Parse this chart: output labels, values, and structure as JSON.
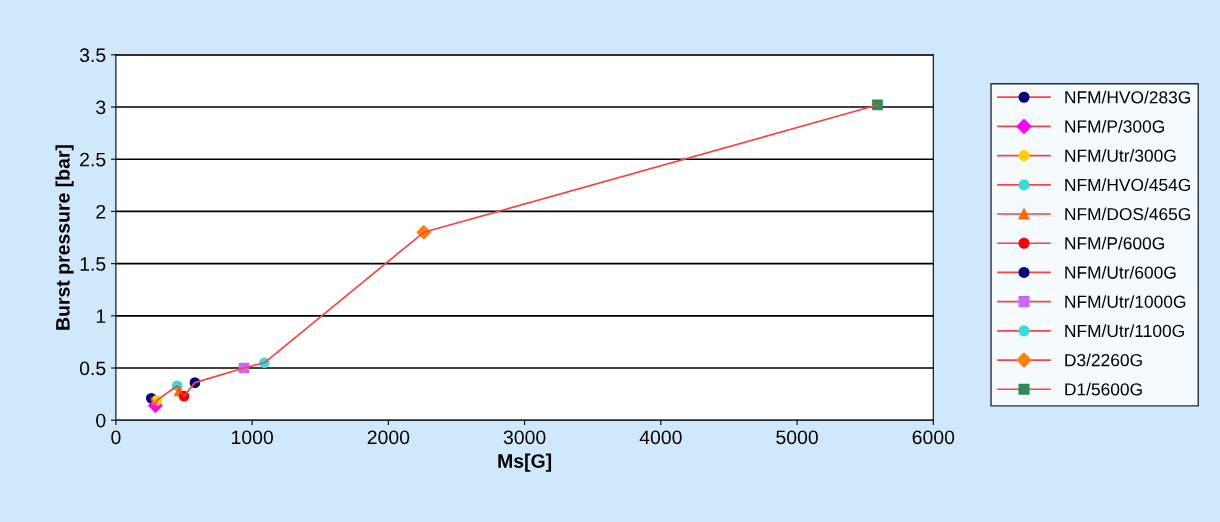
{
  "chart_data": {
    "type": "scatter",
    "xlabel": "Ms[G]",
    "ylabel": "Burst pressure [bar]",
    "xlim": [
      0,
      6000
    ],
    "xticks": [
      0,
      1000,
      2000,
      3000,
      4000,
      5000,
      6000
    ],
    "ylim": [
      0,
      3.5
    ],
    "yticks": [
      0,
      0.5,
      1,
      1.5,
      2,
      2.5,
      3,
      3.5
    ],
    "grid": "y",
    "legend": "right",
    "series": [
      {
        "type": "line",
        "color": "#ff4040",
        "marker": "none",
        "x": [
          260,
          290,
          300,
          450,
          465,
          500,
          580,
          940,
          1090,
          2260,
          5590
        ],
        "values": [
          0.21,
          0.14,
          0.19,
          0.33,
          0.28,
          0.23,
          0.36,
          0.5,
          0.55,
          1.8,
          3.02
        ]
      },
      {
        "name": "NFM/HVO/283G",
        "color": "#000080",
        "marker": "circle",
        "x": [
          260
        ],
        "values": [
          0.21
        ]
      },
      {
        "name": "NFM/P/300G",
        "color": "#ff00ff",
        "marker": "diamond",
        "x": [
          290
        ],
        "values": [
          0.14
        ]
      },
      {
        "name": "NFM/Utr/300G",
        "color": "#ffd000",
        "marker": "circle",
        "x": [
          300
        ],
        "values": [
          0.19
        ]
      },
      {
        "name": "NFM/HVO/454G",
        "color": "#33dddd",
        "marker": "circle",
        "x": [
          450
        ],
        "values": [
          0.33
        ]
      },
      {
        "name": "NFM/DOS/465G",
        "color": "#ff6a00",
        "marker": "triangle",
        "x": [
          465
        ],
        "values": [
          0.28
        ]
      },
      {
        "name": "NFM/P/600G",
        "color": "#ff0000",
        "marker": "circle",
        "x": [
          500
        ],
        "values": [
          0.23
        ]
      },
      {
        "name": "NFM/Utr/600G",
        "color": "#000080",
        "marker": "circle",
        "x": [
          580
        ],
        "values": [
          0.36
        ]
      },
      {
        "name": "NFM/Utr/1000G",
        "color": "#cc66ff",
        "marker": "square",
        "x": [
          940
        ],
        "values": [
          0.5
        ]
      },
      {
        "name": "NFM/Utr/1100G",
        "color": "#33dddd",
        "marker": "circle",
        "x": [
          1090
        ],
        "values": [
          0.55
        ]
      },
      {
        "name": "D3/2260G",
        "color": "#ff7f0e",
        "marker": "diamond",
        "x": [
          2260
        ],
        "values": [
          1.8
        ]
      },
      {
        "name": "D1/5600G",
        "color": "#2e8b57",
        "marker": "square",
        "x": [
          5590
        ],
        "values": [
          3.02
        ]
      }
    ]
  }
}
